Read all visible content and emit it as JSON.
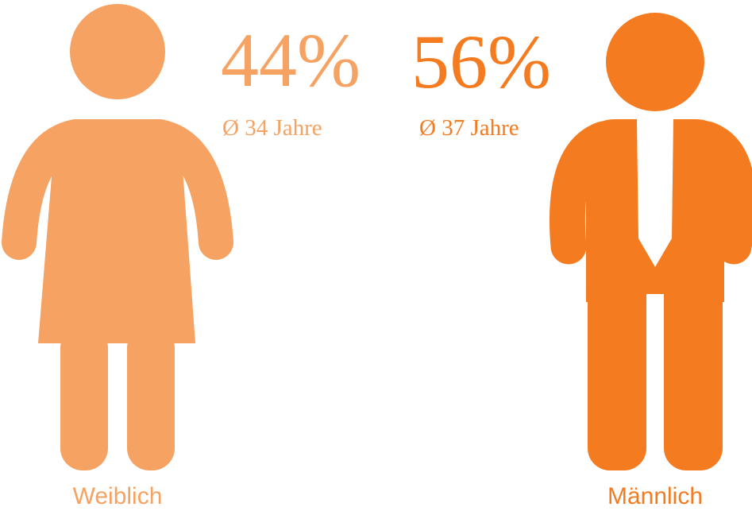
{
  "figures": [
    {
      "label": "Weiblich",
      "percent": "44%",
      "age": "Ø 34 Jahre",
      "color": "#f5a262"
    },
    {
      "label": "Männlich",
      "percent": "56%",
      "age": "Ø 37 Jahre",
      "color": "#f47b20"
    }
  ]
}
